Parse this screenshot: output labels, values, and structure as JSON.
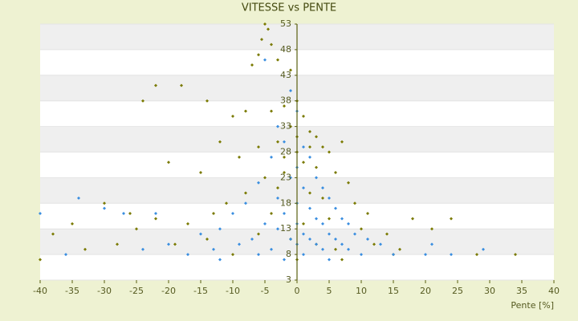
{
  "chart_data": {
    "type": "scatter",
    "title": "VITESSE vs PENTE",
    "x_label": "Pente [%]",
    "xlim": [
      -40,
      40
    ],
    "xticks": [
      -40,
      -35,
      -30,
      -25,
      -20,
      -15,
      -10,
      -5,
      0,
      5,
      10,
      15,
      20,
      25,
      30,
      35,
      40
    ],
    "ylim": [
      3,
      53
    ],
    "yticks": [
      3,
      8,
      13,
      18,
      23,
      28,
      33,
      38,
      43,
      48,
      53
    ],
    "grid": true,
    "series": [
      {
        "color": "#7a7a00",
        "x": [
          -5,
          -4.5,
          -5.5,
          -6,
          -4,
          -3,
          -7,
          -1,
          -22,
          -18,
          -24,
          -14,
          -10,
          -8,
          -4,
          -2,
          0,
          1,
          -1,
          2,
          3,
          -3,
          4,
          -6,
          5,
          7,
          -12,
          -9,
          -20,
          -15,
          -2,
          0,
          1,
          3,
          6,
          8,
          -5,
          -3,
          2,
          4,
          9,
          11,
          -8,
          -11,
          -13,
          -26,
          -30,
          -35,
          -38,
          -25,
          -17,
          -22,
          10,
          14,
          18,
          24,
          21,
          -33,
          -28,
          -19,
          -14,
          -6,
          -1,
          3,
          6,
          12,
          16,
          28,
          34,
          -40,
          -10,
          0,
          7,
          15,
          -4,
          1,
          5,
          -2,
          0,
          2
        ],
        "values": [
          53,
          52,
          50,
          47,
          49,
          46,
          45,
          44,
          41,
          41,
          38,
          38,
          35,
          36,
          36,
          37,
          38,
          35,
          33,
          32,
          31,
          30,
          29,
          29,
          28,
          30,
          30,
          27,
          26,
          24,
          27,
          28,
          26,
          25,
          24,
          22,
          23,
          21,
          20,
          19,
          18,
          16,
          20,
          18,
          16,
          16,
          18,
          14,
          12,
          13,
          14,
          15,
          13,
          12,
          15,
          15,
          13,
          9,
          10,
          10,
          11,
          12,
          11,
          10,
          9,
          10,
          9,
          8,
          8,
          7,
          8,
          7,
          7,
          8,
          16,
          14,
          15,
          24,
          31,
          29
        ]
      },
      {
        "color": "#3a8ee0",
        "x": [
          -5,
          -1,
          0,
          -3,
          -2,
          1,
          -4,
          2,
          0,
          -1,
          3,
          -6,
          1,
          4,
          -3,
          5,
          -8,
          0,
          2,
          6,
          -10,
          -2,
          3,
          7,
          -5,
          0,
          4,
          8,
          -12,
          -3,
          1,
          5,
          9,
          -15,
          -7,
          -1,
          2,
          6,
          11,
          -20,
          -9,
          0,
          3,
          7,
          13,
          -24,
          -13,
          -4,
          4,
          8,
          -17,
          -6,
          1,
          10,
          15,
          20,
          -27,
          -30,
          -40,
          -34,
          -22,
          24,
          29,
          21,
          -36,
          -12,
          -2,
          5
        ],
        "values": [
          46,
          40,
          36,
          33,
          30,
          29,
          27,
          27,
          25,
          23,
          23,
          22,
          21,
          21,
          19,
          19,
          18,
          18,
          17,
          17,
          16,
          16,
          15,
          15,
          14,
          14,
          14,
          14,
          13,
          13,
          12,
          12,
          12,
          12,
          11,
          11,
          11,
          11,
          11,
          10,
          10,
          10,
          10,
          10,
          10,
          9,
          9,
          9,
          9,
          9,
          8,
          8,
          8,
          8,
          8,
          8,
          16,
          17,
          16,
          19,
          16,
          8,
          9,
          10,
          8,
          7,
          7,
          7
        ]
      }
    ]
  }
}
